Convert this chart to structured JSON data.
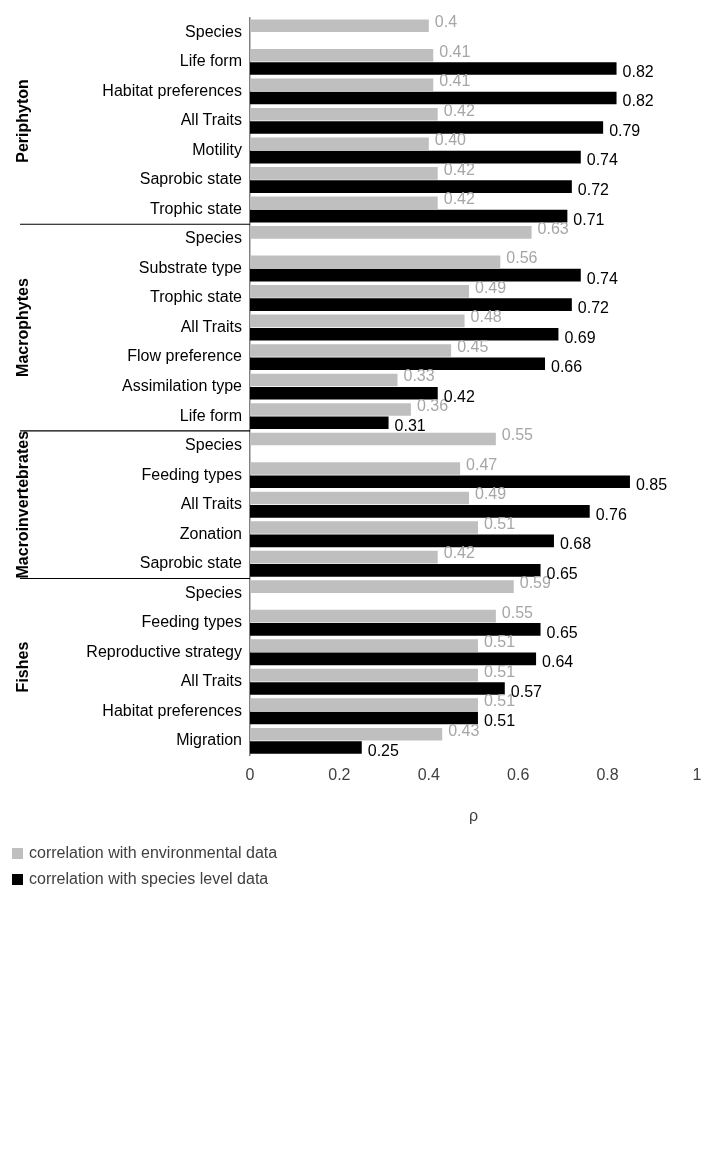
{
  "chart_data": {
    "type": "bar",
    "orientation": "horizontal",
    "xlabel": "ρ",
    "xlim": [
      0,
      1
    ],
    "xticks": [
      0,
      0.2,
      0.4,
      0.6,
      0.8,
      1
    ],
    "grid": false,
    "legend": "bottom",
    "annotations": [
      "Periphyton",
      "Macrophytes",
      "Macroinvertebrates",
      "Fishes"
    ],
    "categories": [
      "Species",
      "Life form",
      "Habitat preferences",
      "All Traits",
      "Motility",
      "Saprobic state",
      "Trophic state",
      "Species",
      "Substrate type",
      "Trophic state",
      "All Traits",
      "Flow preference",
      "Assimilation type",
      "Life form",
      "Species",
      "Feeding types",
      "All Traits",
      "Zonation",
      "Saprobic state",
      "Species",
      "Feeding types",
      "Reproductive strategy",
      "All Traits",
      "Habitat preferences",
      "Migration"
    ],
    "series": [
      {
        "name": "correlation with environmental data",
        "color": "#bfbfbf",
        "values": [
          0.4,
          0.41,
          0.41,
          0.42,
          0.4,
          0.42,
          0.42,
          0.63,
          0.56,
          0.49,
          0.48,
          0.45,
          0.33,
          0.36,
          0.55,
          0.47,
          0.49,
          0.51,
          0.42,
          0.59,
          0.55,
          0.51,
          0.51,
          0.51,
          0.43
        ],
        "value_labels": [
          "0.4",
          "0.41",
          "0.41",
          "0.42",
          "0.40",
          "0.42",
          "0.42",
          "0.63",
          "0.56",
          "0.49",
          "0.48",
          "0.45",
          "0.33",
          "0.36",
          "0.55",
          "0.47",
          "0.49",
          "0.51",
          "0.42",
          "0.59",
          "0.55",
          "0.51",
          "0.51",
          "0.51",
          "0.43"
        ]
      },
      {
        "name": "correlation with species level data",
        "color": "#000000",
        "values": [
          null,
          0.82,
          0.82,
          0.79,
          0.74,
          0.72,
          0.71,
          null,
          0.74,
          0.72,
          0.69,
          0.66,
          0.42,
          0.31,
          null,
          0.85,
          0.76,
          0.68,
          0.65,
          null,
          0.65,
          0.64,
          0.57,
          0.51,
          0.25
        ],
        "value_labels": [
          null,
          "0.82",
          "0.82",
          "0.79",
          "0.74",
          "0.72",
          "0.71",
          null,
          "0.74",
          "0.72",
          "0.69",
          "0.66",
          "0.42",
          "0.31",
          null,
          "0.85",
          "0.76",
          "0.68",
          "0.65",
          null,
          "0.65",
          "0.64",
          "0.57",
          "0.51",
          "0.25"
        ]
      }
    ]
  }
}
